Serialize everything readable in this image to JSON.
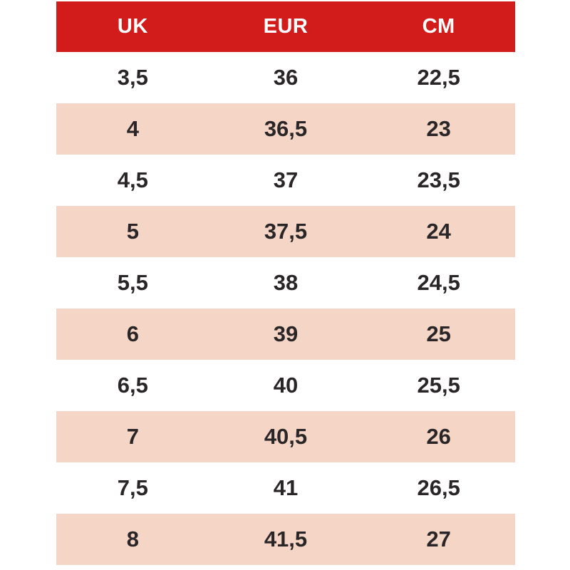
{
  "chart_data": {
    "type": "table",
    "columns": [
      "UK",
      "EUR",
      "CM"
    ],
    "rows": [
      [
        "3,5",
        "36",
        "22,5"
      ],
      [
        "4",
        "36,5",
        "23"
      ],
      [
        "4,5",
        "37",
        "23,5"
      ],
      [
        "5",
        "37,5",
        "24"
      ],
      [
        "5,5",
        "38",
        "24,5"
      ],
      [
        "6",
        "39",
        "25"
      ],
      [
        "6,5",
        "40",
        "25,5"
      ],
      [
        "7",
        "40,5",
        "26"
      ],
      [
        "7,5",
        "41",
        "26,5"
      ],
      [
        "8",
        "41,5",
        "27"
      ]
    ],
    "layout": {
      "header_style": "solid-red-band",
      "striping": "alternating, first data row white, second peach, repeating",
      "decimal_separator": ","
    }
  },
  "colors": {
    "header_bg": "#d21b1b",
    "header_text": "#ffffff",
    "stripe_bg": "#f5d6c6",
    "row_bg": "#ffffff",
    "cell_text": "#2a2627",
    "page_bg": "#ffffff"
  }
}
